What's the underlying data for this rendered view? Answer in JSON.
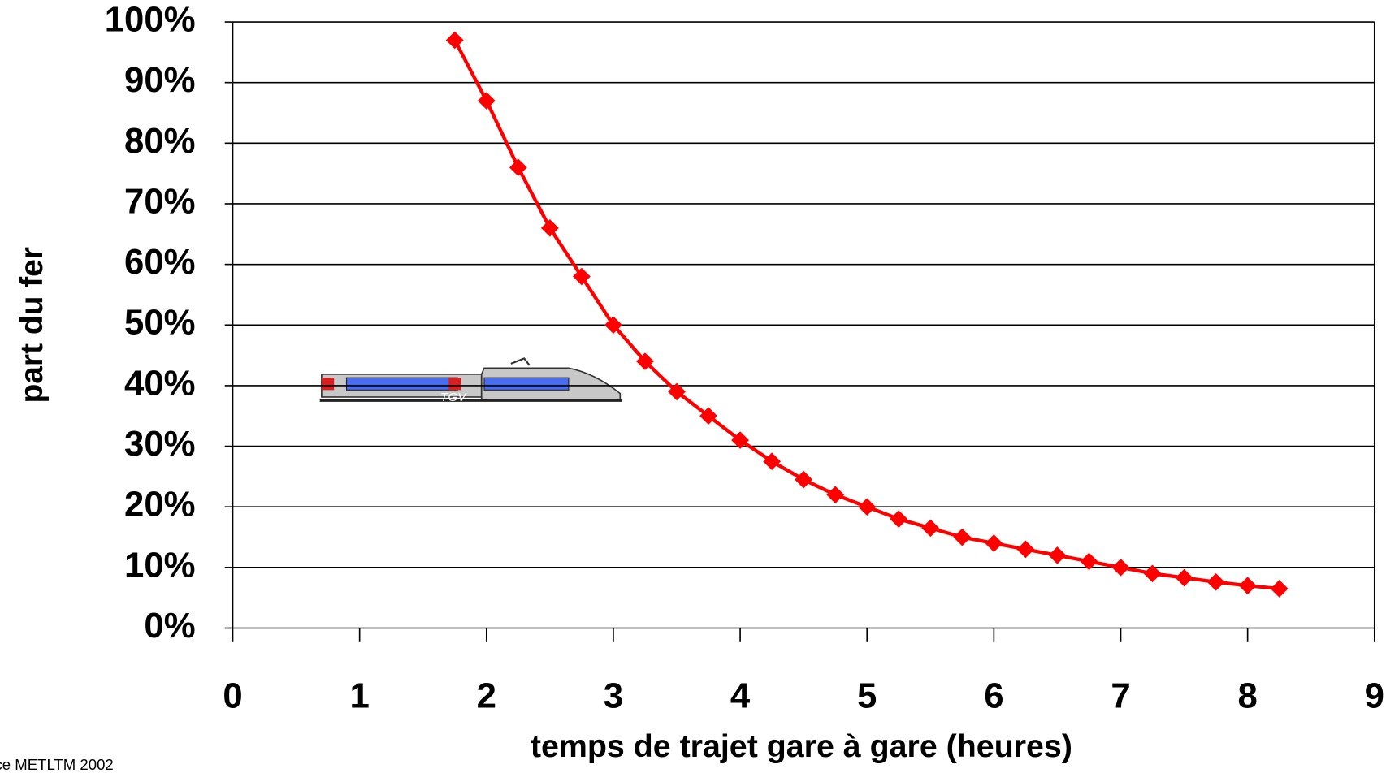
{
  "chart_data": {
    "type": "line",
    "x_label": "temps de trajet gare à gare (heures)",
    "y_label": "part du fer",
    "source": "ce METLTM 2002",
    "annotation": "TGV",
    "x": [
      1.75,
      2,
      2.25,
      2.5,
      2.75,
      3,
      3.25,
      3.5,
      3.75,
      4,
      4.25,
      4.5,
      4.75,
      5,
      5.25,
      5.5,
      5.75,
      6,
      6.25,
      6.5,
      6.75,
      7,
      7.25,
      7.5,
      7.75,
      8,
      8.25
    ],
    "series": [
      {
        "color": "#ff0000",
        "values": [
          97,
          87,
          76,
          66,
          58,
          50,
          44,
          39,
          35,
          31,
          27.5,
          24.5,
          22,
          20,
          18,
          16.5,
          15,
          14,
          13,
          12,
          11,
          10,
          9,
          8.3,
          7.6,
          7,
          6.5
        ]
      }
    ],
    "xlim": [
      0,
      9
    ],
    "xticks": [
      0,
      1,
      2,
      3,
      4,
      5,
      6,
      7,
      8,
      9
    ],
    "ylim": [
      0,
      100
    ],
    "yticks": [
      {
        "value": 0,
        "label": "0%"
      },
      {
        "value": 10,
        "label": "10%"
      },
      {
        "value": 20,
        "label": "20%"
      },
      {
        "value": 30,
        "label": "30%"
      },
      {
        "value": 40,
        "label": "40%"
      },
      {
        "value": 50,
        "label": "50%"
      },
      {
        "value": 60,
        "label": "60%"
      },
      {
        "value": 70,
        "label": "70%"
      },
      {
        "value": 80,
        "label": "80%"
      },
      {
        "value": 90,
        "label": "90%"
      },
      {
        "value": 100,
        "label": "100%"
      }
    ],
    "grid": true
  }
}
